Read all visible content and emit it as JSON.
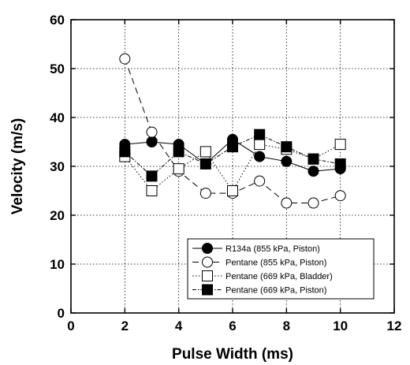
{
  "chart_data": {
    "type": "line",
    "xlabel": "Pulse Width (ms)",
    "ylabel": "Velocity (m/s)",
    "xlim": [
      0,
      12
    ],
    "ylim": [
      0,
      60
    ],
    "x_ticks": [
      0,
      2,
      4,
      6,
      8,
      10,
      12
    ],
    "y_ticks": [
      0,
      10,
      20,
      30,
      40,
      50,
      60
    ],
    "x_tick_labels": [
      "0",
      "2",
      "4",
      "6",
      "8",
      "10",
      "12"
    ],
    "y_tick_labels": [
      "0",
      "10",
      "20",
      "30",
      "40",
      "50",
      "60"
    ],
    "grid": true,
    "legend_position": "bottom-right",
    "series": [
      {
        "name": "R134a (855 kPa, Piston)",
        "marker": "filled-circle",
        "line": "solid",
        "x": [
          2,
          3,
          4,
          5,
          6,
          7,
          8,
          9,
          10
        ],
        "y": [
          34.5,
          35,
          34.5,
          30.5,
          35.5,
          32,
          31,
          29,
          29.5
        ]
      },
      {
        "name": "Pentane (855 kPa, Piston)",
        "marker": "open-circle",
        "line": "dashed",
        "x": [
          2,
          3,
          4,
          5,
          6,
          7,
          8,
          9,
          10
        ],
        "y": [
          52,
          37,
          29,
          24.5,
          24.5,
          27,
          22.5,
          22.5,
          24
        ]
      },
      {
        "name": "Pentane (669 kPa, Bladder)",
        "marker": "open-square",
        "line": "dotted",
        "x": [
          2,
          3,
          4,
          5,
          6,
          7,
          8,
          9,
          10
        ],
        "y": [
          32,
          25,
          29.5,
          33,
          25,
          34.5,
          33.5,
          31.5,
          34.5
        ]
      },
      {
        "name": "Pentane (669 kPa, Piston)",
        "marker": "filled-square",
        "line": "dash-dot",
        "x": [
          2,
          3,
          4,
          5,
          6,
          7,
          8,
          9,
          10
        ],
        "y": [
          33,
          28,
          33,
          30.5,
          34,
          36.5,
          34,
          31.5,
          30.5
        ]
      }
    ]
  }
}
